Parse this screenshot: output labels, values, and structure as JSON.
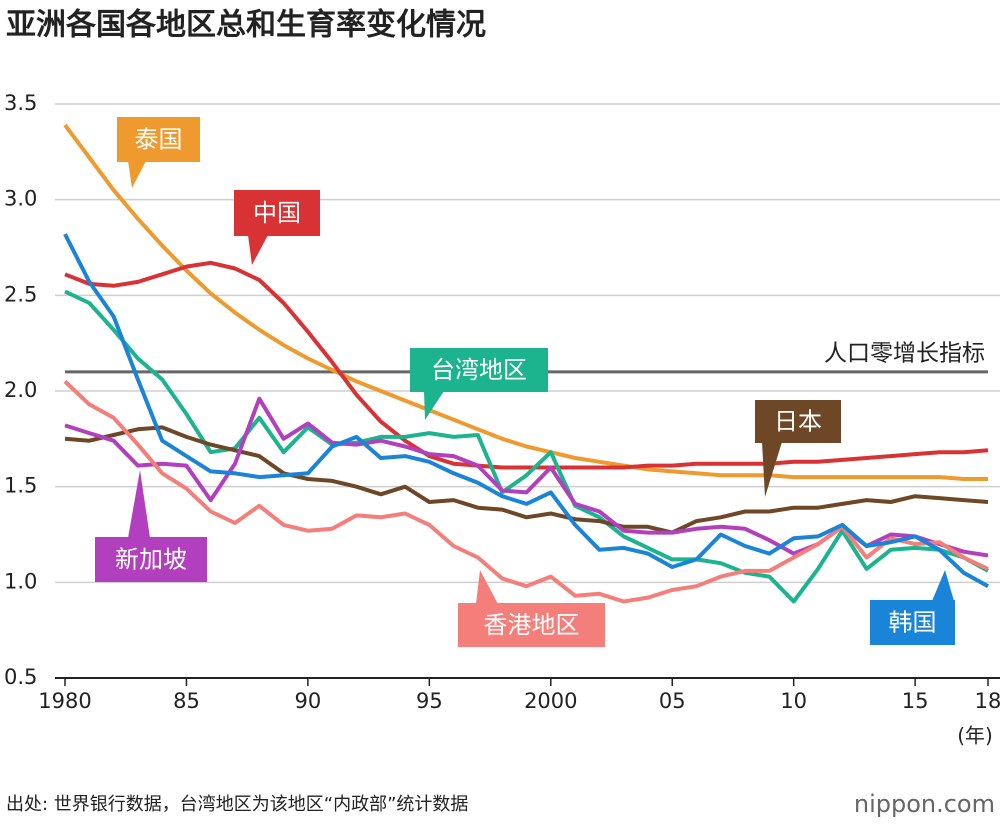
{
  "chart_data": {
    "type": "line",
    "title": "亚洲各国各地区总和生育率变化情况",
    "source": "出处: 世界银行数据，台湾地区为该地区“内政部”统计数据",
    "brand": "nippon.com",
    "x_unit": "(年)",
    "x": [
      1980,
      1981,
      1982,
      1983,
      1984,
      1985,
      1986,
      1987,
      1988,
      1989,
      1990,
      1991,
      1992,
      1993,
      1994,
      1995,
      1996,
      1997,
      1998,
      1999,
      2000,
      2001,
      2002,
      2003,
      2004,
      2005,
      2006,
      2007,
      2008,
      2009,
      2010,
      2011,
      2012,
      2013,
      2014,
      2015,
      2016,
      2017,
      2018
    ],
    "xlim": [
      1980,
      2018
    ],
    "xticks": [
      {
        "value": 1980,
        "label": "1980"
      },
      {
        "value": 1985,
        "label": "85"
      },
      {
        "value": 1990,
        "label": "90"
      },
      {
        "value": 1995,
        "label": "95"
      },
      {
        "value": 2000,
        "label": "2000"
      },
      {
        "value": 2005,
        "label": "05"
      },
      {
        "value": 2010,
        "label": "10"
      },
      {
        "value": 2015,
        "label": "15"
      },
      {
        "value": 2018,
        "label": "18"
      }
    ],
    "ylim": [
      0.5,
      3.5
    ],
    "yticks": [
      0.5,
      {
        "value": 1,
        "label": "1.0"
      },
      1.5,
      {
        "value": 2,
        "label": "2.0"
      },
      2.5,
      {
        "value": 3,
        "label": "3.0"
      },
      3.5
    ],
    "grid": true,
    "reference_line": {
      "value": 2.1,
      "label": "人口零增长指标",
      "color": "#666666"
    },
    "series": [
      {
        "name": "泰国",
        "color": "#ee9a2e",
        "values": [
          3.39,
          3.22,
          3.05,
          2.9,
          2.76,
          2.63,
          2.51,
          2.41,
          2.32,
          2.24,
          2.17,
          2.11,
          2.05,
          2.0,
          1.95,
          1.9,
          1.85,
          1.8,
          1.75,
          1.71,
          1.68,
          1.65,
          1.63,
          1.61,
          1.59,
          1.58,
          1.57,
          1.56,
          1.56,
          1.56,
          1.55,
          1.55,
          1.55,
          1.55,
          1.55,
          1.55,
          1.55,
          1.54,
          1.54
        ]
      },
      {
        "name": "中国",
        "color": "#d93234",
        "values": [
          2.61,
          2.56,
          2.55,
          2.57,
          2.61,
          2.65,
          2.67,
          2.64,
          2.58,
          2.46,
          2.31,
          2.15,
          1.98,
          1.84,
          1.74,
          1.66,
          1.62,
          1.61,
          1.6,
          1.6,
          1.6,
          1.6,
          1.6,
          1.6,
          1.61,
          1.61,
          1.62,
          1.62,
          1.62,
          1.62,
          1.63,
          1.63,
          1.64,
          1.65,
          1.66,
          1.67,
          1.68,
          1.68,
          1.69
        ]
      },
      {
        "name": "台湾地区",
        "color": "#1bb48f",
        "values": [
          2.52,
          2.46,
          2.32,
          2.17,
          2.06,
          1.88,
          1.68,
          1.7,
          1.86,
          1.68,
          1.81,
          1.72,
          1.73,
          1.76,
          1.76,
          1.78,
          1.76,
          1.77,
          1.47,
          1.56,
          1.68,
          1.4,
          1.34,
          1.24,
          1.18,
          1.12,
          1.12,
          1.1,
          1.05,
          1.03,
          0.9,
          1.07,
          1.27,
          1.07,
          1.17,
          1.18,
          1.17,
          1.13,
          1.06
        ]
      },
      {
        "name": "日本",
        "color": "#6d4726",
        "values": [
          1.75,
          1.74,
          1.77,
          1.8,
          1.81,
          1.76,
          1.72,
          1.69,
          1.66,
          1.57,
          1.54,
          1.53,
          1.5,
          1.46,
          1.5,
          1.42,
          1.43,
          1.39,
          1.38,
          1.34,
          1.36,
          1.33,
          1.32,
          1.29,
          1.29,
          1.26,
          1.32,
          1.34,
          1.37,
          1.37,
          1.39,
          1.39,
          1.41,
          1.43,
          1.42,
          1.45,
          1.44,
          1.43,
          1.42
        ]
      },
      {
        "name": "新加坡",
        "color": "#b23fbd",
        "values": [
          1.82,
          1.78,
          1.74,
          1.61,
          1.62,
          1.61,
          1.43,
          1.62,
          1.96,
          1.75,
          1.83,
          1.73,
          1.72,
          1.74,
          1.71,
          1.67,
          1.66,
          1.61,
          1.48,
          1.47,
          1.6,
          1.41,
          1.37,
          1.27,
          1.26,
          1.26,
          1.28,
          1.29,
          1.28,
          1.22,
          1.15,
          1.2,
          1.29,
          1.19,
          1.25,
          1.24,
          1.2,
          1.16,
          1.14
        ]
      },
      {
        "name": "香港地区",
        "color": "#f47e7a",
        "values": [
          2.05,
          1.93,
          1.86,
          1.72,
          1.57,
          1.49,
          1.37,
          1.31,
          1.4,
          1.3,
          1.27,
          1.28,
          1.35,
          1.34,
          1.36,
          1.3,
          1.19,
          1.13,
          1.02,
          0.98,
          1.03,
          0.93,
          0.94,
          0.9,
          0.92,
          0.96,
          0.98,
          1.03,
          1.06,
          1.06,
          1.13,
          1.2,
          1.29,
          1.13,
          1.23,
          1.2,
          1.21,
          1.13,
          1.07
        ]
      },
      {
        "name": "韩国",
        "color": "#1a84d8",
        "values": [
          2.82,
          2.57,
          2.39,
          2.06,
          1.74,
          1.66,
          1.58,
          1.57,
          1.55,
          1.56,
          1.57,
          1.71,
          1.76,
          1.65,
          1.66,
          1.63,
          1.57,
          1.52,
          1.45,
          1.41,
          1.47,
          1.3,
          1.17,
          1.18,
          1.15,
          1.08,
          1.12,
          1.25,
          1.19,
          1.15,
          1.23,
          1.24,
          1.3,
          1.19,
          1.21,
          1.24,
          1.17,
          1.05,
          0.98
        ]
      }
    ]
  }
}
